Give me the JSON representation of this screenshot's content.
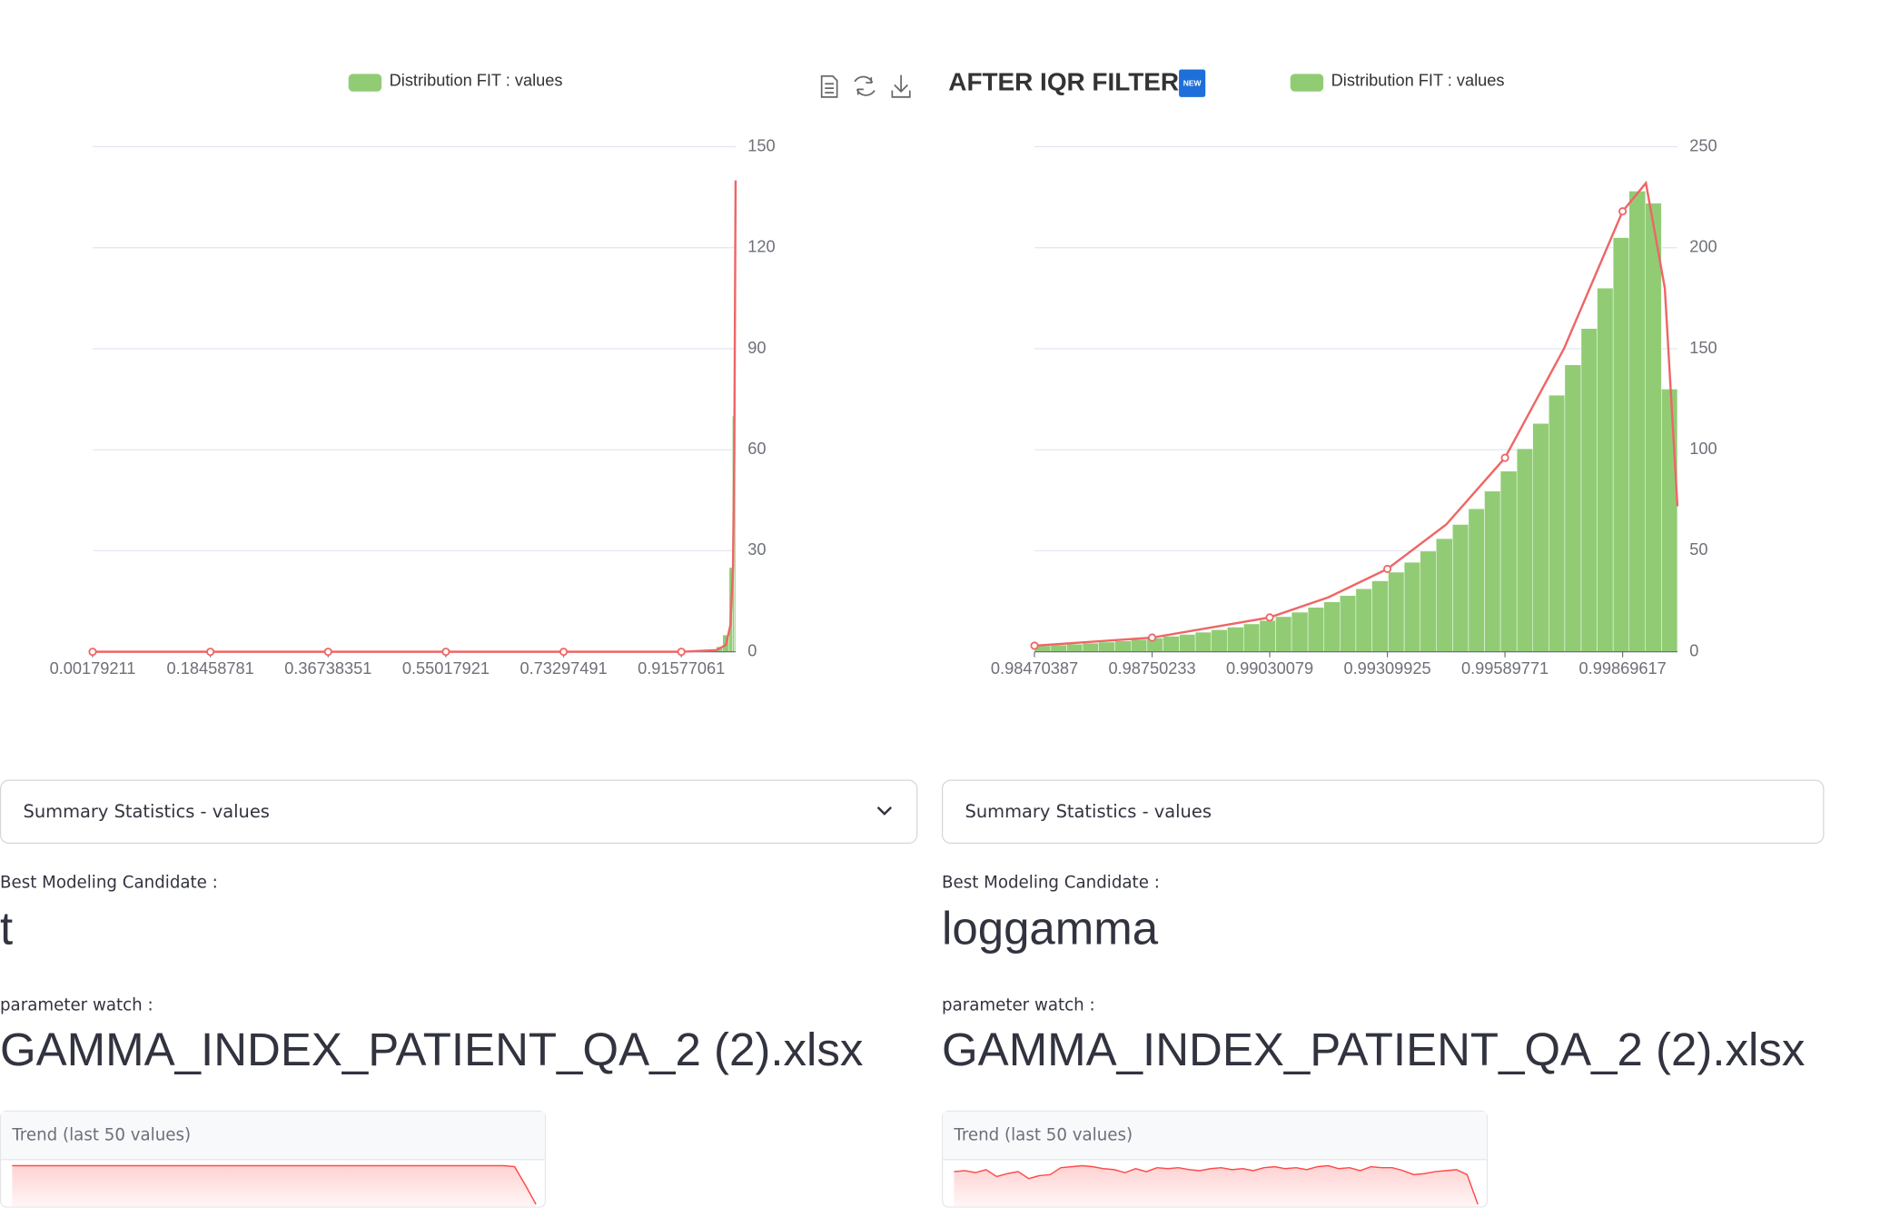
{
  "chart_data": [
    {
      "type": "histogram",
      "legend": "Distribution FIT : values",
      "color": "#91cc75",
      "bins": [
        0.00179211,
        0.95,
        0.97,
        0.98,
        0.99,
        0.995,
        0.998,
        1.0
      ],
      "counts": [
        0,
        0.5,
        1.5,
        5,
        25,
        70,
        130
      ],
      "line": {
        "color": "#ee6666",
        "x": [
          0.00179211,
          0.18458781,
          0.36738351,
          0.55017921,
          0.73297491,
          0.91577061,
          0.97,
          0.985,
          0.992,
          0.996,
          0.998,
          0.999,
          1.0
        ],
        "values": [
          0,
          0,
          0,
          0,
          0,
          0,
          0.5,
          2,
          8,
          25,
          60,
          100,
          140
        ]
      },
      "xlim": [
        0.00179211,
        1.0
      ],
      "xticks": [
        0.00179211,
        0.18458781,
        0.36738351,
        0.55017921,
        0.73297491,
        0.91577061
      ],
      "ylim": [
        0,
        150
      ],
      "yticks": [
        0,
        30,
        60,
        90,
        120,
        150
      ],
      "grid": true
    },
    {
      "type": "histogram",
      "title": "AFTER IQR FILTER",
      "badge": "NEW",
      "legend": "Distribution FIT : values",
      "color": "#91cc75",
      "bins": [
        0.98470387,
        0.98509,
        0.98547,
        0.98585,
        0.98623,
        0.98662,
        0.987,
        0.98738,
        0.98776,
        0.98815,
        0.98853,
        0.98891,
        0.98929,
        0.98968,
        0.99006,
        0.99044,
        0.99082,
        0.99121,
        0.99159,
        0.99197,
        0.99235,
        0.99273,
        0.99312,
        0.9935,
        0.99388,
        0.99426,
        0.99465,
        0.99503,
        0.99541,
        0.99579,
        0.99618,
        0.99656,
        0.99694,
        0.99732,
        0.99771,
        0.99809,
        0.99847,
        0.99885,
        0.99924,
        0.99962,
        1.0
      ],
      "counts": [
        3,
        3.4,
        3.8,
        4.3,
        4.8,
        5.4,
        6.1,
        6.8,
        7.7,
        8.6,
        9.7,
        10.9,
        12.2,
        13.8,
        15.5,
        17.4,
        19.6,
        22,
        24.7,
        27.8,
        31.2,
        35.1,
        39.4,
        44.3,
        49.8,
        56,
        63,
        70.8,
        79.5,
        89.4,
        100.5,
        113,
        127,
        142,
        160,
        180,
        205,
        228,
        222,
        130
      ],
      "line": {
        "color": "#ee6666",
        "x": [
          0.98470387,
          0.98750233,
          0.99030079,
          0.9917,
          0.99309925,
          0.9945,
          0.99589771,
          0.9973,
          0.99869617,
          0.99925,
          0.9997,
          1.0
        ],
        "values": [
          3,
          7,
          17,
          27,
          41,
          63,
          96,
          150,
          218,
          232,
          180,
          72
        ]
      },
      "xlim": [
        0.98470387,
        1.0
      ],
      "xticks": [
        0.98470387,
        0.98750233,
        0.99030079,
        0.99309925,
        0.99589771,
        0.99869617
      ],
      "ylim": [
        0,
        250
      ],
      "yticks": [
        0,
        50,
        100,
        150,
        200,
        250
      ],
      "grid": true
    },
    {
      "type": "sparkline",
      "color": "#ff4b4b",
      "values": [
        1,
        1,
        1,
        1,
        1,
        1,
        1,
        1,
        1,
        1,
        1,
        1,
        1,
        1,
        1,
        1,
        1,
        1,
        1,
        1,
        1,
        1,
        1,
        1,
        1,
        1,
        1,
        1,
        1,
        1,
        1,
        1,
        1,
        1,
        1,
        1,
        1,
        1,
        1,
        1,
        1,
        1,
        1,
        1,
        1,
        1,
        1,
        0.999,
        0.98,
        0.96
      ]
    },
    {
      "type": "sparkline",
      "color": "#ff4b4b",
      "values": [
        0.993,
        0.994,
        0.992,
        0.995,
        0.988,
        0.991,
        0.993,
        0.986,
        0.989,
        0.99,
        0.997,
        0.998,
        0.999,
        0.998,
        0.996,
        0.995,
        0.992,
        0.996,
        0.993,
        0.997,
        0.996,
        0.997,
        0.995,
        0.994,
        0.996,
        0.997,
        0.995,
        0.996,
        0.994,
        0.997,
        0.998,
        0.996,
        0.997,
        0.995,
        0.998,
        0.999,
        0.996,
        0.997,
        0.994,
        0.998,
        0.997,
        0.997,
        0.994,
        0.99,
        0.991,
        0.993,
        0.994,
        0.995,
        0.99,
        0.96
      ]
    }
  ],
  "panels": [
    {
      "summary": "Summary Statistics - values",
      "candidate_label": "Best Modeling Candidate :",
      "candidate": "t",
      "param_label": "parameter watch :",
      "param_value": "GAMMA_INDEX_PATIENT_QA_2 (2).xlsx",
      "trend_title": "Trend (last 50 values)"
    },
    {
      "summary": "Summary Statistics - values",
      "candidate_label": "Best Modeling Candidate :",
      "candidate": "loggamma",
      "param_label": "parameter watch :",
      "param_value": "GAMMA_INDEX_PATIENT_QA_2 (2).xlsx",
      "trend_title": "Trend (last 50 values)"
    }
  ]
}
